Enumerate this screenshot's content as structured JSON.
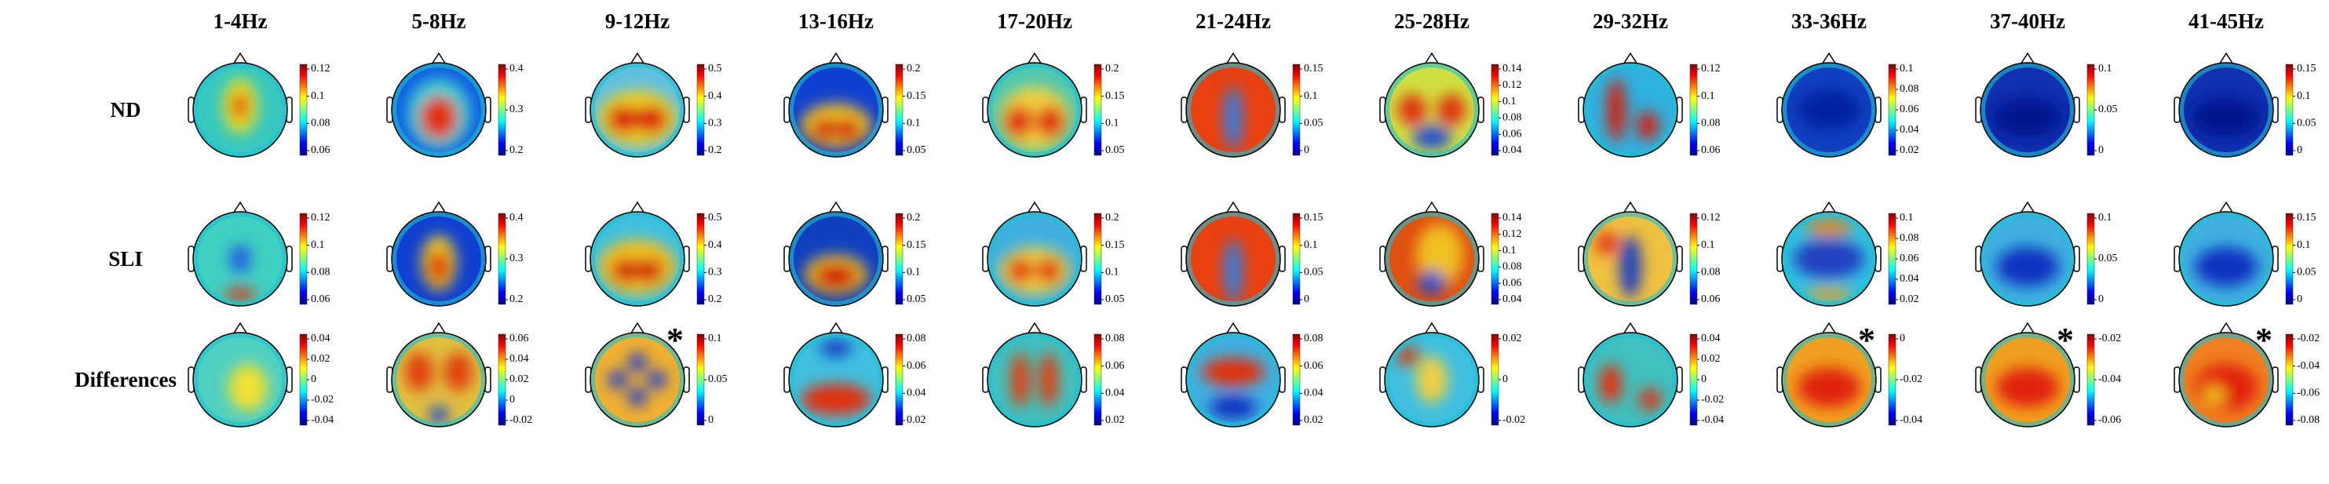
{
  "columns": [
    "1-4Hz",
    "5-8Hz",
    "9-12Hz",
    "13-16Hz",
    "17-20Hz",
    "21-24Hz",
    "25-28Hz",
    "29-32Hz",
    "33-36Hz",
    "37-40Hz",
    "41-45Hz"
  ],
  "rows": [
    {
      "label": "ND",
      "panels": [
        {
          "ticks": [
            "0.12",
            "0.1",
            "0.08",
            "0.06"
          ]
        },
        {
          "ticks": [
            "0.4",
            "0.3",
            "0.2"
          ]
        },
        {
          "ticks": [
            "0.5",
            "0.4",
            "0.3",
            "0.2"
          ]
        },
        {
          "ticks": [
            "0.2",
            "0.15",
            "0.1",
            "0.05"
          ]
        },
        {
          "ticks": [
            "0.2",
            "0.15",
            "0.1",
            "0.05"
          ]
        },
        {
          "ticks": [
            "0.15",
            "0.1",
            "0.05",
            "0"
          ]
        },
        {
          "ticks": [
            "0.14",
            "0.12",
            "0.1",
            "0.08",
            "0.06",
            "0.04"
          ]
        },
        {
          "ticks": [
            "0.12",
            "0.1",
            "0.08",
            "0.06"
          ]
        },
        {
          "ticks": [
            "0.1",
            "0.08",
            "0.06",
            "0.04",
            "0.02"
          ]
        },
        {
          "ticks": [
            "0.1",
            "0.05",
            "0"
          ]
        },
        {
          "ticks": [
            "0.15",
            "0.1",
            "0.05",
            "0"
          ]
        }
      ]
    },
    {
      "label": "SLI",
      "panels": [
        {
          "ticks": [
            "0.12",
            "0.1",
            "0.08",
            "0.06"
          ]
        },
        {
          "ticks": [
            "0.4",
            "0.3",
            "0.2"
          ]
        },
        {
          "ticks": [
            "0.5",
            "0.4",
            "0.3",
            "0.2"
          ]
        },
        {
          "ticks": [
            "0.2",
            "0.15",
            "0.1",
            "0.05"
          ]
        },
        {
          "ticks": [
            "0.2",
            "0.15",
            "0.1",
            "0.05"
          ]
        },
        {
          "ticks": [
            "0.15",
            "0.1",
            "0.05",
            "0"
          ]
        },
        {
          "ticks": [
            "0.14",
            "0.12",
            "0.1",
            "0.08",
            "0.06",
            "0.04"
          ]
        },
        {
          "ticks": [
            "0.12",
            "0.1",
            "0.08",
            "0.06"
          ]
        },
        {
          "ticks": [
            "0.1",
            "0.08",
            "0.06",
            "0.04",
            "0.02"
          ]
        },
        {
          "ticks": [
            "0.1",
            "0.05",
            "0"
          ]
        },
        {
          "ticks": [
            "0.15",
            "0.1",
            "0.05",
            "0"
          ]
        }
      ]
    },
    {
      "label": "Differences",
      "panels": [
        {
          "ticks": [
            "0.04",
            "0.02",
            "0",
            "-0.02",
            "-0.04"
          ]
        },
        {
          "ticks": [
            "0.06",
            "0.04",
            "0.02",
            "0",
            "-0.02"
          ]
        },
        {
          "ticks": [
            "0.1",
            "0.05",
            "0"
          ],
          "mark": "*"
        },
        {
          "ticks": [
            "0.08",
            "0.06",
            "0.04",
            "0.02"
          ]
        },
        {
          "ticks": [
            "0.08",
            "0.06",
            "0.04",
            "0.02"
          ]
        },
        {
          "ticks": [
            "0.08",
            "0.06",
            "0.04",
            "0.02"
          ]
        },
        {
          "ticks": [
            "0.02",
            "0",
            "-0.02"
          ]
        },
        {
          "ticks": [
            "0.04",
            "0.02",
            "0",
            "-0.02",
            "-0.04"
          ]
        },
        {
          "ticks": [
            "0",
            "-0.02",
            "-0.04"
          ],
          "mark": "*"
        },
        {
          "ticks": [
            "-0.02",
            "-0.04",
            "-0.06"
          ],
          "mark": "*"
        },
        {
          "ticks": [
            "-0.02",
            "-0.04",
            "-0.06",
            "-0.08"
          ],
          "mark": "*"
        }
      ]
    }
  ]
}
